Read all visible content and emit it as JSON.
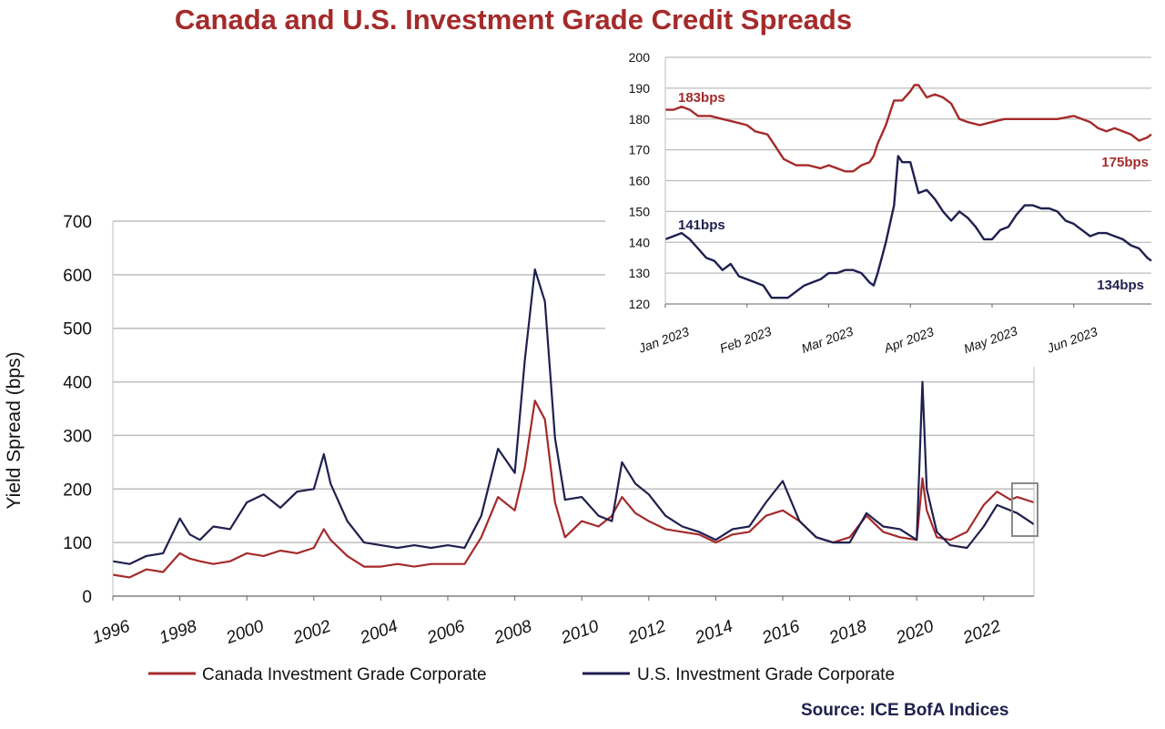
{
  "title": "Canada and U.S. Investment Grade Credit Spreads",
  "source": "Source: ICE BofA Indices",
  "colors": {
    "canada": "#a52a2a",
    "us": "#1f1f4f",
    "grid": "#bdbdbd",
    "box": "#8a8a8a"
  },
  "chart_data": [
    {
      "type": "line",
      "ylabel": "Yield Spread (bps)",
      "ylim": [
        0,
        700
      ],
      "yticks": [
        "0",
        "100",
        "200",
        "300",
        "400",
        "500",
        "600",
        "700"
      ],
      "xlim": [
        1996,
        2023.5
      ],
      "xticks": [
        "1996",
        "1998",
        "2000",
        "2002",
        "2004",
        "2006",
        "2008",
        "2010",
        "2012",
        "2014",
        "2016",
        "2018",
        "2020",
        "2022"
      ],
      "grid": true,
      "legend": "bottom",
      "series": [
        {
          "name": "Canada Investment Grade Corporate",
          "color": "#a52a2a",
          "x": [
            1996.0,
            1996.5,
            1997.0,
            1997.5,
            1998.0,
            1998.3,
            1998.6,
            1999.0,
            1999.5,
            2000.0,
            2000.5,
            2001.0,
            2001.5,
            2002.0,
            2002.3,
            2002.5,
            2003.0,
            2003.5,
            2004.0,
            2004.5,
            2005.0,
            2005.5,
            2006.0,
            2006.5,
            2007.0,
            2007.5,
            2008.0,
            2008.3,
            2008.6,
            2008.9,
            2009.2,
            2009.5,
            2010.0,
            2010.5,
            2010.9,
            2011.2,
            2011.6,
            2012.0,
            2012.5,
            2013.0,
            2013.5,
            2014.0,
            2014.5,
            2015.0,
            2015.5,
            2016.0,
            2016.5,
            2017.0,
            2017.5,
            2018.0,
            2018.5,
            2019.0,
            2019.5,
            2020.0,
            2020.17,
            2020.3,
            2020.6,
            2021.0,
            2021.5,
            2022.0,
            2022.4,
            2022.8,
            2023.0,
            2023.5
          ],
          "values": [
            40,
            35,
            50,
            45,
            80,
            70,
            65,
            60,
            65,
            80,
            75,
            85,
            80,
            90,
            125,
            105,
            75,
            55,
            55,
            60,
            55,
            60,
            60,
            60,
            110,
            185,
            160,
            240,
            365,
            330,
            175,
            110,
            140,
            130,
            150,
            185,
            155,
            140,
            125,
            120,
            115,
            100,
            115,
            120,
            150,
            160,
            140,
            110,
            100,
            110,
            150,
            120,
            110,
            105,
            220,
            160,
            110,
            105,
            120,
            170,
            195,
            180,
            185,
            175
          ]
        },
        {
          "name": "U.S. Investment Grade Corporate",
          "color": "#1f1f4f",
          "x": [
            1996.0,
            1996.5,
            1997.0,
            1997.5,
            1998.0,
            1998.3,
            1998.6,
            1999.0,
            1999.5,
            2000.0,
            2000.5,
            2001.0,
            2001.5,
            2002.0,
            2002.3,
            2002.5,
            2003.0,
            2003.5,
            2004.0,
            2004.5,
            2005.0,
            2005.5,
            2006.0,
            2006.5,
            2007.0,
            2007.5,
            2008.0,
            2008.3,
            2008.6,
            2008.9,
            2009.2,
            2009.5,
            2010.0,
            2010.5,
            2010.9,
            2011.2,
            2011.6,
            2012.0,
            2012.5,
            2013.0,
            2013.5,
            2014.0,
            2014.5,
            2015.0,
            2015.5,
            2016.0,
            2016.5,
            2017.0,
            2017.5,
            2018.0,
            2018.5,
            2019.0,
            2019.5,
            2020.0,
            2020.17,
            2020.3,
            2020.6,
            2021.0,
            2021.5,
            2022.0,
            2022.4,
            2022.8,
            2023.0,
            2023.5
          ],
          "values": [
            65,
            60,
            75,
            80,
            145,
            115,
            105,
            130,
            125,
            175,
            190,
            165,
            195,
            200,
            265,
            210,
            140,
            100,
            95,
            90,
            95,
            90,
            95,
            90,
            150,
            275,
            230,
            440,
            610,
            550,
            295,
            180,
            185,
            150,
            140,
            250,
            210,
            190,
            150,
            130,
            120,
            105,
            125,
            130,
            175,
            215,
            140,
            110,
            100,
            100,
            155,
            130,
            125,
            105,
            400,
            200,
            120,
            95,
            90,
            130,
            170,
            160,
            155,
            134
          ]
        }
      ]
    },
    {
      "type": "line",
      "ylim": [
        120,
        200
      ],
      "yticks": [
        "120",
        "130",
        "140",
        "150",
        "160",
        "170",
        "180",
        "190",
        "200"
      ],
      "xlim": [
        0,
        5.95
      ],
      "xticks": [
        "Jan 2023",
        "Feb 2023",
        "Mar 2023",
        "Apr 2023",
        "May 2023",
        "Jun 2023"
      ],
      "grid": true,
      "annotations": [
        "183bps",
        "175bps",
        "141bps",
        "134bps"
      ],
      "series": [
        {
          "name": "Canada Investment Grade Corporate",
          "color": "#a52a2a",
          "x": [
            0,
            0.1,
            0.2,
            0.3,
            0.4,
            0.55,
            0.7,
            0.85,
            1.0,
            1.1,
            1.25,
            1.35,
            1.45,
            1.6,
            1.75,
            1.9,
            2.0,
            2.1,
            2.2,
            2.3,
            2.4,
            2.5,
            2.55,
            2.6,
            2.7,
            2.8,
            2.9,
            3.0,
            3.05,
            3.1,
            3.2,
            3.3,
            3.4,
            3.5,
            3.6,
            3.7,
            3.85,
            4.0,
            4.15,
            4.3,
            4.45,
            4.6,
            4.8,
            5.0,
            5.1,
            5.2,
            5.3,
            5.4,
            5.5,
            5.6,
            5.7,
            5.8,
            5.9,
            5.95
          ],
          "values": [
            183,
            183,
            184,
            183,
            181,
            181,
            180,
            179,
            178,
            176,
            175,
            171,
            167,
            165,
            165,
            164,
            165,
            164,
            163,
            163,
            165,
            166,
            168,
            172,
            178,
            186,
            186,
            189,
            191,
            191,
            187,
            188,
            187,
            185,
            180,
            179,
            178,
            179,
            180,
            180,
            180,
            180,
            180,
            181,
            180,
            179,
            177,
            176,
            177,
            176,
            175,
            173,
            174,
            175
          ]
        },
        {
          "name": "U.S. Investment Grade Corporate",
          "color": "#1f1f4f",
          "x": [
            0,
            0.1,
            0.2,
            0.3,
            0.4,
            0.5,
            0.6,
            0.7,
            0.8,
            0.9,
            1.0,
            1.1,
            1.2,
            1.3,
            1.4,
            1.5,
            1.6,
            1.7,
            1.8,
            1.9,
            2.0,
            2.1,
            2.2,
            2.3,
            2.4,
            2.5,
            2.55,
            2.6,
            2.7,
            2.8,
            2.85,
            2.9,
            3.0,
            3.1,
            3.2,
            3.3,
            3.4,
            3.5,
            3.6,
            3.7,
            3.8,
            3.9,
            4.0,
            4.1,
            4.2,
            4.3,
            4.4,
            4.5,
            4.6,
            4.7,
            4.8,
            4.9,
            5.0,
            5.1,
            5.2,
            5.3,
            5.4,
            5.5,
            5.6,
            5.7,
            5.8,
            5.9,
            5.95
          ],
          "values": [
            141,
            142,
            143,
            141,
            138,
            135,
            134,
            131,
            133,
            129,
            128,
            127,
            126,
            122,
            122,
            122,
            124,
            126,
            127,
            128,
            130,
            130,
            131,
            131,
            130,
            127,
            126,
            130,
            140,
            152,
            168,
            166,
            166,
            156,
            157,
            154,
            150,
            147,
            150,
            148,
            145,
            141,
            141,
            144,
            145,
            149,
            152,
            152,
            151,
            151,
            150,
            147,
            146,
            144,
            142,
            143,
            143,
            142,
            141,
            139,
            138,
            135,
            134
          ]
        }
      ]
    }
  ]
}
